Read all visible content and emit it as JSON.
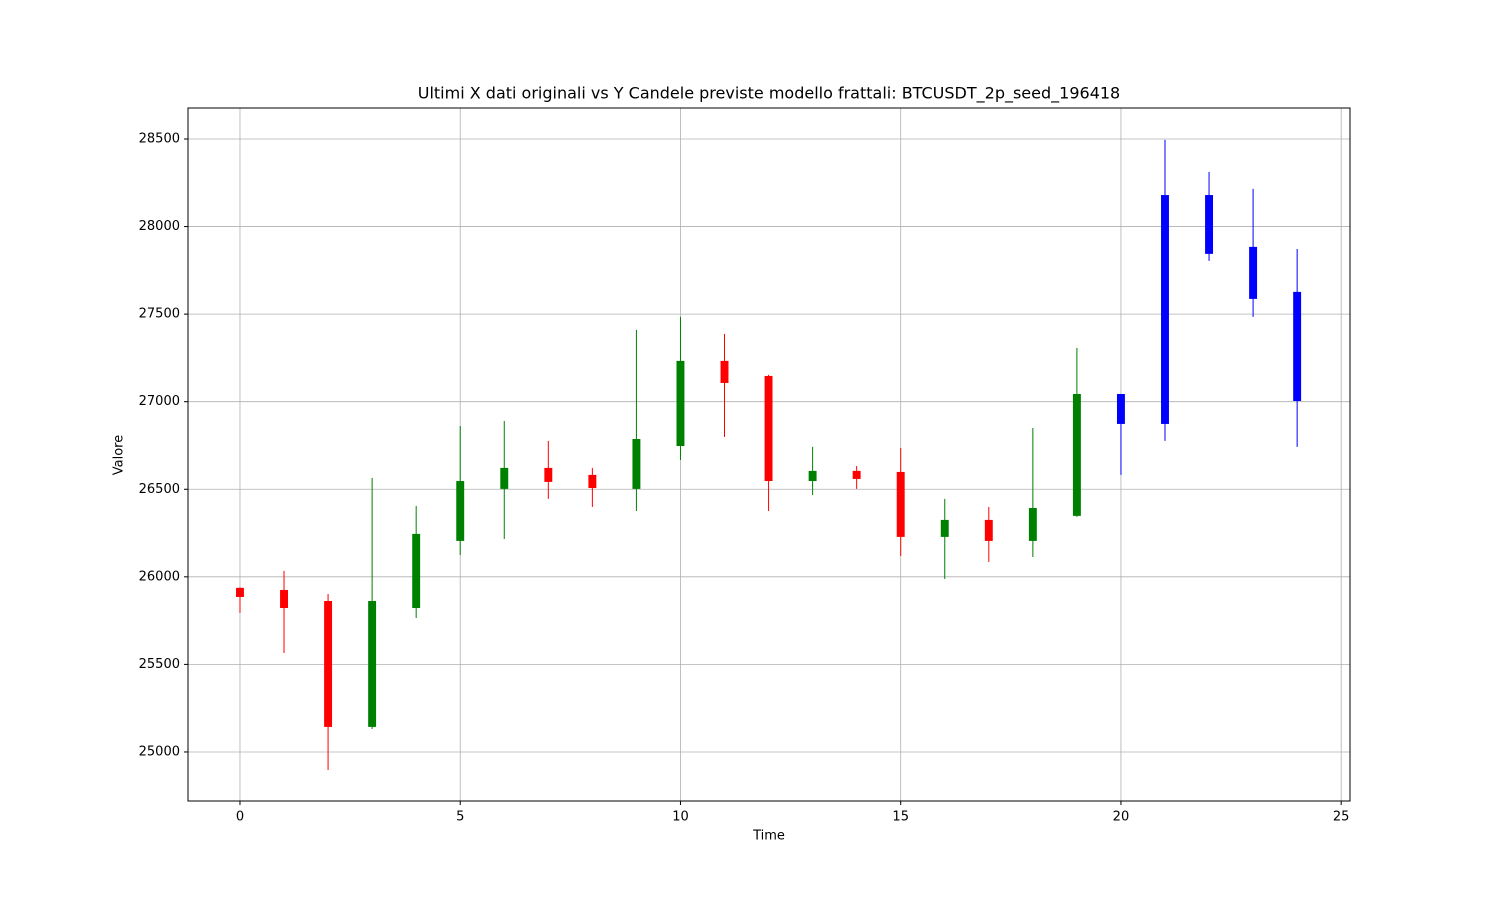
{
  "chart_data": {
    "type": "candlestick",
    "title": "Ultimi X dati originali vs Y Candele previste modello frattali: BTCUSDT_2p_seed_196418",
    "x_label": "Time",
    "y_label": "Valore",
    "x": [
      0,
      1,
      2,
      3,
      4,
      5,
      6,
      7,
      8,
      9,
      10,
      11,
      12,
      13,
      14,
      15,
      16,
      17,
      18,
      19,
      20,
      21,
      22,
      23,
      24
    ],
    "open": [
      25937,
      25925,
      25862,
      25143,
      25822,
      26205,
      26502,
      26622,
      26582,
      26502,
      26747,
      27233,
      27147,
      26547,
      26605,
      26599,
      26228,
      26325,
      26205,
      26348,
      26873,
      26873,
      28180,
      27884,
      27627
    ],
    "high": [
      25940,
      26034,
      25902,
      26565,
      26405,
      26861,
      26890,
      26776,
      26622,
      27410,
      27484,
      27387,
      27153,
      26742,
      26633,
      26736,
      26445,
      26399,
      26850,
      27307,
      27044,
      28495,
      28312,
      28215,
      27872
    ],
    "low": [
      25794,
      25565,
      24897,
      25131,
      25765,
      26125,
      26216,
      26445,
      26399,
      26376,
      26667,
      26799,
      26376,
      26467,
      26502,
      26119,
      25988,
      26085,
      26113,
      26342,
      26582,
      26776,
      27804,
      27484,
      26742
    ],
    "close": [
      25885,
      25822,
      25143,
      25862,
      26245,
      26547,
      26622,
      26542,
      26507,
      26787,
      27233,
      27107,
      26547,
      26605,
      26559,
      26228,
      26325,
      26205,
      26393,
      27044,
      27044,
      28180,
      27844,
      27587,
      27004
    ],
    "colors": [
      "#ff0000",
      "#ff0000",
      "#ff0000",
      "#008000",
      "#008000",
      "#008000",
      "#008000",
      "#ff0000",
      "#ff0000",
      "#008000",
      "#008000",
      "#ff0000",
      "#ff0000",
      "#008000",
      "#ff0000",
      "#ff0000",
      "#008000",
      "#ff0000",
      "#008000",
      "#008000",
      "#0000ff",
      "#0000ff",
      "#0000ff",
      "#0000ff",
      "#0000ff"
    ],
    "xlim": [
      -1.18,
      25.2
    ],
    "ylim": [
      24720,
      28677
    ],
    "xticks": [
      0,
      5,
      10,
      15,
      20,
      25
    ],
    "yticks": [
      25000,
      25500,
      26000,
      26500,
      27000,
      27500,
      28000,
      28500
    ],
    "grid": true
  }
}
